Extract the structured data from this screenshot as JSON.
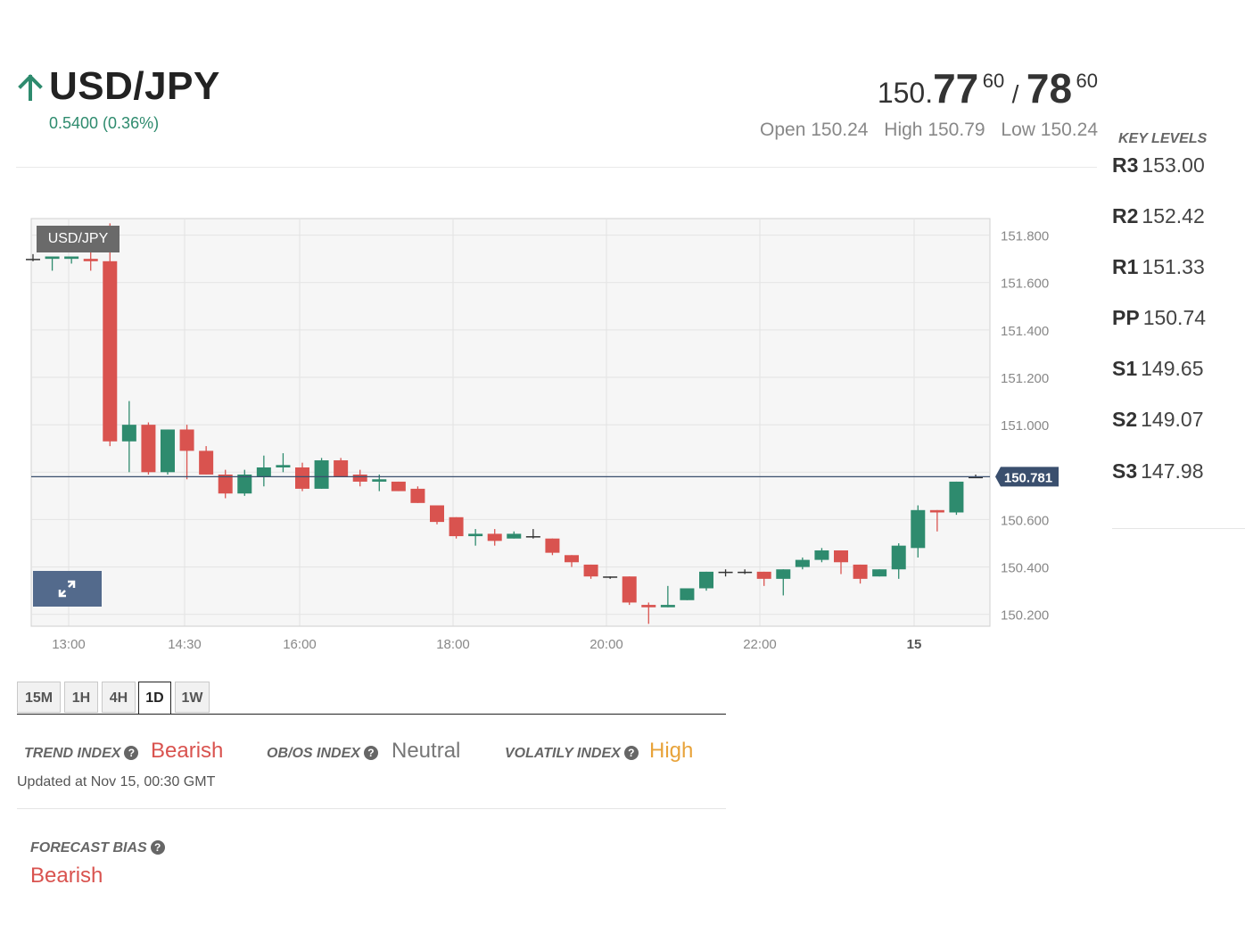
{
  "header": {
    "symbol": "USD/JPY",
    "direction_icon": "arrow-up-icon",
    "change": "0.5400 (0.36%)",
    "bid_prefix": "150.",
    "bid_big": "77",
    "bid_sup": "60",
    "separator": "/",
    "ask_big": "78",
    "ask_sup": "60",
    "open": "Open 150.24",
    "high": "High 150.79",
    "low": "Low 150.24"
  },
  "key_levels": {
    "title": "KEY LEVELS",
    "items": [
      {
        "label": "R3",
        "value": "153.00"
      },
      {
        "label": "R2",
        "value": "152.42"
      },
      {
        "label": "R1",
        "value": "151.33"
      },
      {
        "label": "PP",
        "value": "150.74"
      },
      {
        "label": "S1",
        "value": "149.65"
      },
      {
        "label": "S2",
        "value": "149.07"
      },
      {
        "label": "S3",
        "value": "147.98"
      }
    ]
  },
  "chart": {
    "label": "USD/JPY",
    "expand_icon": "expand-icon"
  },
  "chart_data": {
    "type": "candlestick",
    "title": "USD/JPY",
    "y_ticks": [
      "151.800",
      "151.600",
      "151.400",
      "151.200",
      "151.000",
      "150.800",
      "150.600",
      "150.400",
      "150.200"
    ],
    "x_ticks": [
      "13:00",
      "14:30",
      "16:00",
      "18:00",
      "20:00",
      "22:00",
      "15"
    ],
    "ylim": [
      150.15,
      151.87
    ],
    "current_price": "150.781",
    "grid": true,
    "candles": [
      {
        "o": 151.7,
        "h": 151.72,
        "l": 151.69,
        "c": 151.7
      },
      {
        "o": 151.7,
        "h": 151.71,
        "l": 151.65,
        "c": 151.71
      },
      {
        "o": 151.7,
        "h": 151.71,
        "l": 151.68,
        "c": 151.71
      },
      {
        "o": 151.7,
        "h": 151.73,
        "l": 151.65,
        "c": 151.69
      },
      {
        "o": 151.69,
        "h": 151.85,
        "l": 150.91,
        "c": 150.93
      },
      {
        "o": 150.93,
        "h": 151.1,
        "l": 150.8,
        "c": 151.0
      },
      {
        "o": 151.0,
        "h": 151.01,
        "l": 150.79,
        "c": 150.8
      },
      {
        "o": 150.8,
        "h": 150.98,
        "l": 150.79,
        "c": 150.98
      },
      {
        "o": 150.98,
        "h": 151.0,
        "l": 150.77,
        "c": 150.89
      },
      {
        "o": 150.89,
        "h": 150.91,
        "l": 150.79,
        "c": 150.79
      },
      {
        "o": 150.79,
        "h": 150.81,
        "l": 150.69,
        "c": 150.71
      },
      {
        "o": 150.71,
        "h": 150.81,
        "l": 150.7,
        "c": 150.79
      },
      {
        "o": 150.78,
        "h": 150.87,
        "l": 150.74,
        "c": 150.82
      },
      {
        "o": 150.82,
        "h": 150.88,
        "l": 150.8,
        "c": 150.83
      },
      {
        "o": 150.82,
        "h": 150.84,
        "l": 150.72,
        "c": 150.73
      },
      {
        "o": 150.73,
        "h": 150.86,
        "l": 150.73,
        "c": 150.85
      },
      {
        "o": 150.85,
        "h": 150.86,
        "l": 150.78,
        "c": 150.78
      },
      {
        "o": 150.79,
        "h": 150.81,
        "l": 150.74,
        "c": 150.76
      },
      {
        "o": 150.76,
        "h": 150.79,
        "l": 150.72,
        "c": 150.77
      },
      {
        "o": 150.76,
        "h": 150.76,
        "l": 150.72,
        "c": 150.72
      },
      {
        "o": 150.73,
        "h": 150.74,
        "l": 150.67,
        "c": 150.67
      },
      {
        "o": 150.66,
        "h": 150.66,
        "l": 150.58,
        "c": 150.59
      },
      {
        "o": 150.61,
        "h": 150.61,
        "l": 150.52,
        "c": 150.53
      },
      {
        "o": 150.53,
        "h": 150.56,
        "l": 150.49,
        "c": 150.54
      },
      {
        "o": 150.54,
        "h": 150.56,
        "l": 150.49,
        "c": 150.51
      },
      {
        "o": 150.52,
        "h": 150.55,
        "l": 150.52,
        "c": 150.54
      },
      {
        "o": 150.53,
        "h": 150.56,
        "l": 150.52,
        "c": 150.53
      },
      {
        "o": 150.52,
        "h": 150.52,
        "l": 150.45,
        "c": 150.46
      },
      {
        "o": 150.45,
        "h": 150.45,
        "l": 150.4,
        "c": 150.42
      },
      {
        "o": 150.41,
        "h": 150.41,
        "l": 150.35,
        "c": 150.36
      },
      {
        "o": 150.36,
        "h": 150.36,
        "l": 150.35,
        "c": 150.36
      },
      {
        "o": 150.36,
        "h": 150.36,
        "l": 150.24,
        "c": 150.25
      },
      {
        "o": 150.24,
        "h": 150.25,
        "l": 150.16,
        "c": 150.23
      },
      {
        "o": 150.23,
        "h": 150.32,
        "l": 150.23,
        "c": 150.24
      },
      {
        "o": 150.26,
        "h": 150.31,
        "l": 150.26,
        "c": 150.31
      },
      {
        "o": 150.31,
        "h": 150.38,
        "l": 150.3,
        "c": 150.38
      },
      {
        "o": 150.38,
        "h": 150.39,
        "l": 150.36,
        "c": 150.38
      },
      {
        "o": 150.38,
        "h": 150.39,
        "l": 150.37,
        "c": 150.38
      },
      {
        "o": 150.38,
        "h": 150.38,
        "l": 150.32,
        "c": 150.35
      },
      {
        "o": 150.35,
        "h": 150.39,
        "l": 150.28,
        "c": 150.39
      },
      {
        "o": 150.4,
        "h": 150.44,
        "l": 150.39,
        "c": 150.43
      },
      {
        "o": 150.43,
        "h": 150.48,
        "l": 150.42,
        "c": 150.47
      },
      {
        "o": 150.47,
        "h": 150.47,
        "l": 150.37,
        "c": 150.42
      },
      {
        "o": 150.41,
        "h": 150.41,
        "l": 150.33,
        "c": 150.35
      },
      {
        "o": 150.36,
        "h": 150.39,
        "l": 150.36,
        "c": 150.39
      },
      {
        "o": 150.39,
        "h": 150.5,
        "l": 150.35,
        "c": 150.49
      },
      {
        "o": 150.48,
        "h": 150.66,
        "l": 150.44,
        "c": 150.64
      },
      {
        "o": 150.64,
        "h": 150.64,
        "l": 150.55,
        "c": 150.63
      },
      {
        "o": 150.63,
        "h": 150.76,
        "l": 150.62,
        "c": 150.76
      },
      {
        "o": 150.78,
        "h": 150.79,
        "l": 150.78,
        "c": 150.78
      }
    ]
  },
  "timeframes": [
    "15M",
    "1H",
    "4H",
    "1D",
    "1W"
  ],
  "active_timeframe": "1D",
  "indices": {
    "trend_label": "TREND INDEX",
    "trend_value": "Bearish",
    "obos_label": "OB/OS INDEX",
    "obos_value": "Neutral",
    "volatility_label": "VOLATILY INDEX",
    "volatility_value": "High",
    "updated": "Updated at Nov 15, 00:30 GMT",
    "help_icon": "?"
  },
  "forecast": {
    "label": "FORECAST BIAS",
    "value": "Bearish"
  },
  "colors": {
    "up": "#2e8b6e",
    "down": "#d9534f",
    "neutral": "#777777",
    "high": "#e8a33a",
    "price_tag": "#3a4f6e"
  }
}
